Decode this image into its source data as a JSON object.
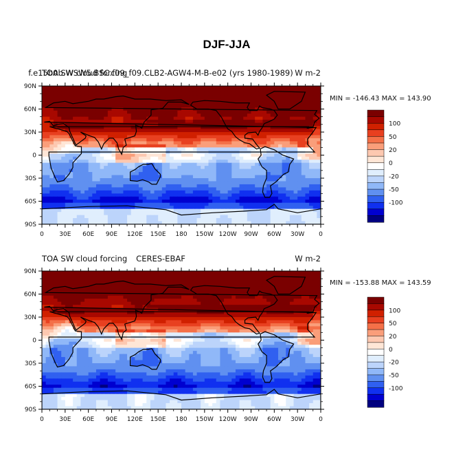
{
  "figure_title": "DJF-JJA",
  "colors": {
    "levels": [
      "#000080",
      "#0000d0",
      "#1030f0",
      "#3060f0",
      "#6090f0",
      "#90b8f8",
      "#bcd4fb",
      "#e0eefd",
      "#ffffff",
      "#ffe6d6",
      "#fdc8b0",
      "#fa9e7a",
      "#f47048",
      "#e84020",
      "#d02000",
      "#a80800",
      "#7a0000"
    ]
  },
  "chart_data": [
    {
      "type": "heatmap",
      "title_left": "TOA SW cloud forcing",
      "title_center": "f.e15b0b.WSW5.BSC.f09_f09.CLB2-AGW4-M-B-e02 (yrs 1980-1989)",
      "title_right": "W m-2",
      "stats": "MIN = -146.43  MAX = 143.90",
      "x_ticks": [
        "0",
        "30E",
        "60E",
        "90E",
        "120E",
        "150E",
        "180",
        "150W",
        "120W",
        "90W",
        "60W",
        "30W",
        "0"
      ],
      "y_ticks": [
        "90N",
        "60N",
        "30N",
        "0",
        "30S",
        "60S",
        "90S"
      ],
      "xlim": [
        0,
        360
      ],
      "ylim": [
        -90,
        90
      ],
      "colorbar_labels": [
        "100",
        "50",
        "20",
        "0",
        "-20",
        "-50",
        "-100"
      ]
    },
    {
      "type": "heatmap",
      "title_left": "TOA SW cloud forcing",
      "title_center": "CERES-EBAF",
      "title_right": "W m-2",
      "stats": "MIN = -153.88  MAX = 143.59",
      "x_ticks": [
        "0",
        "30E",
        "60E",
        "90E",
        "120E",
        "150E",
        "180",
        "150W",
        "120W",
        "90W",
        "60W",
        "30W",
        "0"
      ],
      "y_ticks": [
        "90N",
        "60N",
        "30N",
        "0",
        "30S",
        "60S",
        "90S"
      ],
      "xlim": [
        0,
        360
      ],
      "ylim": [
        -90,
        90
      ],
      "colorbar_labels": [
        "100",
        "50",
        "20",
        "0",
        "-20",
        "-50",
        "-100"
      ]
    }
  ]
}
